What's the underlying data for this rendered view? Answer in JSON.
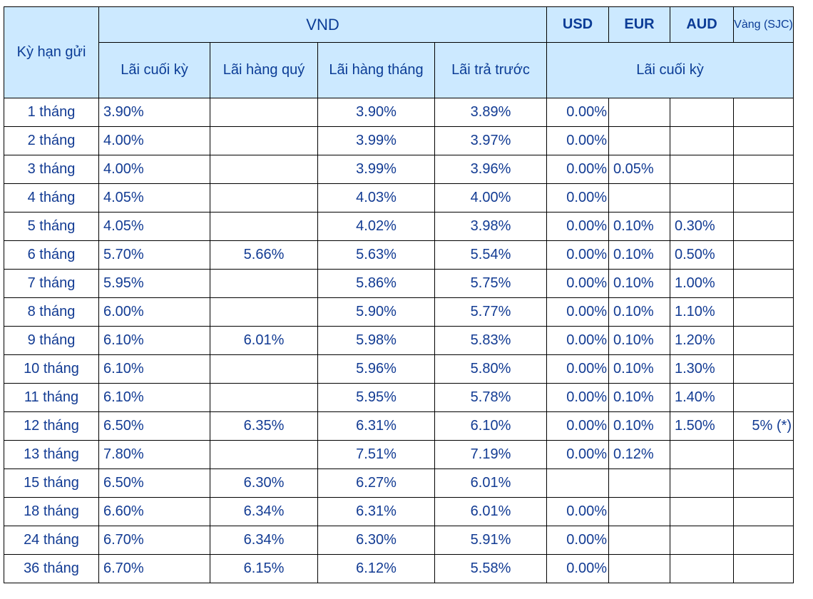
{
  "header": {
    "title_fragment": "",
    "term": "Kỳ hạn gửi",
    "vnd": "VND",
    "usd": "USD",
    "eur": "EUR",
    "aud": "AUD",
    "vang": "Vàng (SJC)",
    "lai_cuoi_ky": "Lãi cuối kỳ",
    "lai_hang_quy": "Lãi hàng quý",
    "lai_hang_thang": "Lãi hàng tháng",
    "lai_tra_truoc": "Lãi trả trước",
    "lai_cuoi_ky_fx": "Lãi cuối kỳ"
  },
  "rows": [
    {
      "term": "1 tháng",
      "cuoi_ky": "3.90%",
      "hang_quy": "",
      "hang_thang": "3.90%",
      "tra_truoc": "3.89%",
      "usd": "0.00%",
      "eur": "",
      "aud": "",
      "vang": ""
    },
    {
      "term": "2 tháng",
      "cuoi_ky": "4.00%",
      "hang_quy": "",
      "hang_thang": "3.99%",
      "tra_truoc": "3.97%",
      "usd": "0.00%",
      "eur": "",
      "aud": "",
      "vang": ""
    },
    {
      "term": "3 tháng",
      "cuoi_ky": "4.00%",
      "hang_quy": "",
      "hang_thang": "3.99%",
      "tra_truoc": "3.96%",
      "usd": "0.00%",
      "eur": "0.05%",
      "aud": "",
      "vang": ""
    },
    {
      "term": "4 tháng",
      "cuoi_ky": "4.05%",
      "hang_quy": "",
      "hang_thang": "4.03%",
      "tra_truoc": "4.00%",
      "usd": "0.00%",
      "eur": "",
      "aud": "",
      "vang": ""
    },
    {
      "term": "5 tháng",
      "cuoi_ky": "4.05%",
      "hang_quy": "",
      "hang_thang": "4.02%",
      "tra_truoc": "3.98%",
      "usd": "0.00%",
      "eur": "0.10%",
      "aud": "0.30%",
      "vang": ""
    },
    {
      "term": "6 tháng",
      "cuoi_ky": "5.70%",
      "hang_quy": "5.66%",
      "hang_thang": "5.63%",
      "tra_truoc": "5.54%",
      "usd": "0.00%",
      "eur": "0.10%",
      "aud": "0.50%",
      "vang": ""
    },
    {
      "term": "7 tháng",
      "cuoi_ky": "5.95%",
      "hang_quy": "",
      "hang_thang": "5.86%",
      "tra_truoc": "5.75%",
      "usd": "0.00%",
      "eur": "0.10%",
      "aud": "1.00%",
      "vang": ""
    },
    {
      "term": "8 tháng",
      "cuoi_ky": "6.00%",
      "hang_quy": "",
      "hang_thang": "5.90%",
      "tra_truoc": "5.77%",
      "usd": "0.00%",
      "eur": "0.10%",
      "aud": "1.10%",
      "vang": ""
    },
    {
      "term": "9 tháng",
      "cuoi_ky": "6.10%",
      "hang_quy": "6.01%",
      "hang_thang": "5.98%",
      "tra_truoc": "5.83%",
      "usd": "0.00%",
      "eur": "0.10%",
      "aud": "1.20%",
      "vang": ""
    },
    {
      "term": "10 tháng",
      "cuoi_ky": "6.10%",
      "hang_quy": "",
      "hang_thang": "5.96%",
      "tra_truoc": "5.80%",
      "usd": "0.00%",
      "eur": "0.10%",
      "aud": "1.30%",
      "vang": ""
    },
    {
      "term": "11 tháng",
      "cuoi_ky": "6.10%",
      "hang_quy": "",
      "hang_thang": "5.95%",
      "tra_truoc": "5.78%",
      "usd": "0.00%",
      "eur": "0.10%",
      "aud": "1.40%",
      "vang": ""
    },
    {
      "term": "12 tháng",
      "cuoi_ky": "6.50%",
      "hang_quy": "6.35%",
      "hang_thang": "6.31%",
      "tra_truoc": "6.10%",
      "usd": "0.00%",
      "eur": "0.10%",
      "aud": "1.50%",
      "vang": "5% (*)"
    },
    {
      "term": "13 tháng",
      "cuoi_ky": "7.80%",
      "hang_quy": "",
      "hang_thang": "7.51%",
      "tra_truoc": "7.19%",
      "usd": "0.00%",
      "eur": "0.12%",
      "aud": "",
      "vang": ""
    },
    {
      "term": "15 tháng",
      "cuoi_ky": "6.50%",
      "hang_quy": "6.30%",
      "hang_thang": "6.27%",
      "tra_truoc": "6.01%",
      "usd": "",
      "eur": "",
      "aud": "",
      "vang": ""
    },
    {
      "term": "18 tháng",
      "cuoi_ky": "6.60%",
      "hang_quy": "6.34%",
      "hang_thang": "6.31%",
      "tra_truoc": "6.01%",
      "usd": "0.00%",
      "eur": "",
      "aud": "",
      "vang": ""
    },
    {
      "term": "24 tháng",
      "cuoi_ky": "6.70%",
      "hang_quy": "6.34%",
      "hang_thang": "6.30%",
      "tra_truoc": "5.91%",
      "usd": "0.00%",
      "eur": "",
      "aud": "",
      "vang": ""
    },
    {
      "term": "36  tháng",
      "cuoi_ky": "6.70%",
      "hang_quy": "6.15%",
      "hang_thang": "6.12%",
      "tra_truoc": "5.58%",
      "usd": "0.00%",
      "eur": "",
      "aud": "",
      "vang": ""
    }
  ]
}
